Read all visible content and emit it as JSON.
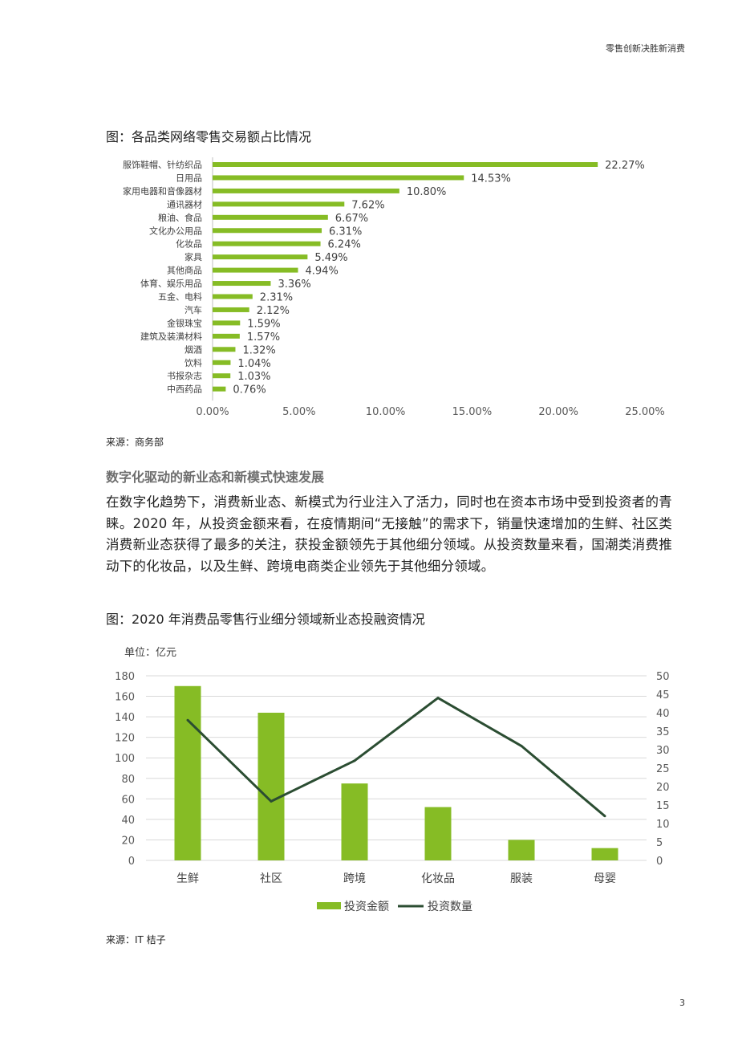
{
  "header": {
    "title": "零售创新决胜新消费"
  },
  "figure1": {
    "title": "图：各品类网络零售交易额占比情况",
    "source": "来源：商务部"
  },
  "section": {
    "heading": "数字化驱动的新业态和新模式快速发展",
    "paragraph": "在数字化趋势下，消费新业态、新模式为行业注入了活力，同时也在资本市场中受到投资者的青睐。2020 年，从投资金额来看，在疫情期间“无接触”的需求下，销量快速增加的生鲜、社区类消费新业态获得了最多的关注，获投金额领先于其他细分领域。从投资数量来看，国潮类消费推动下的化妆品，以及生鲜、跨境电商类企业领先于其他细分领域。"
  },
  "figure2": {
    "title": "图：2020 年消费品零售行业细分领域新业态投融资情况",
    "source": "来源：IT 桔子"
  },
  "page_number": "3",
  "colors": {
    "bar_green": "#86bc25",
    "line_dark": "#2b4d32",
    "axis_text": "#595959"
  },
  "chart_data": [
    {
      "type": "bar",
      "orientation": "horizontal",
      "categories": [
        "服饰鞋帽、针纺织品",
        "日用品",
        "家用电器和音像器材",
        "通讯器材",
        "粮油、食品",
        "文化办公用品",
        "化妆品",
        "家具",
        "其他商品",
        "体育、娱乐用品",
        "五金、电料",
        "汽车",
        "金银珠宝",
        "建筑及装潢材料",
        "烟酒",
        "饮料",
        "书报杂志",
        "中西药品"
      ],
      "values": [
        22.27,
        14.53,
        10.8,
        7.62,
        6.67,
        6.31,
        6.24,
        5.49,
        4.94,
        3.36,
        2.31,
        2.12,
        1.59,
        1.57,
        1.32,
        1.04,
        1.03,
        0.76
      ],
      "value_labels": [
        "22.27%",
        "14.53%",
        "10.80%",
        "7.62%",
        "6.67%",
        "6.31%",
        "6.24%",
        "5.49%",
        "4.94%",
        "3.36%",
        "2.31%",
        "2.12%",
        "1.59%",
        "1.57%",
        "1.32%",
        "1.04%",
        "1.03%",
        "0.76%"
      ],
      "x_ticks": [
        "0.00%",
        "5.00%",
        "10.00%",
        "15.00%",
        "20.00%",
        "25.00%"
      ],
      "xlim": [
        0,
        25
      ],
      "grid": false
    },
    {
      "type": "bar",
      "combo": "bar+line",
      "unit_label": "单位：亿元",
      "categories": [
        "生鲜",
        "社区",
        "跨境",
        "化妆品",
        "服装",
        "母婴"
      ],
      "series": [
        {
          "name": "投资金额",
          "type": "bar",
          "axis": "left",
          "values": [
            170,
            144,
            75,
            52,
            20,
            12
          ]
        },
        {
          "name": "投资数量",
          "type": "line",
          "axis": "right",
          "values": [
            38,
            16,
            27,
            44,
            31,
            12
          ]
        }
      ],
      "y_left_ticks": [
        "0",
        "20",
        "40",
        "60",
        "80",
        "100",
        "120",
        "140",
        "160",
        "180"
      ],
      "y_right_ticks": [
        "0",
        "5",
        "10",
        "15",
        "20",
        "25",
        "30",
        "35",
        "40",
        "45",
        "50"
      ],
      "ylim_left": [
        0,
        180
      ],
      "ylim_right": [
        0,
        50
      ],
      "grid": true,
      "legend_position": "bottom"
    }
  ]
}
